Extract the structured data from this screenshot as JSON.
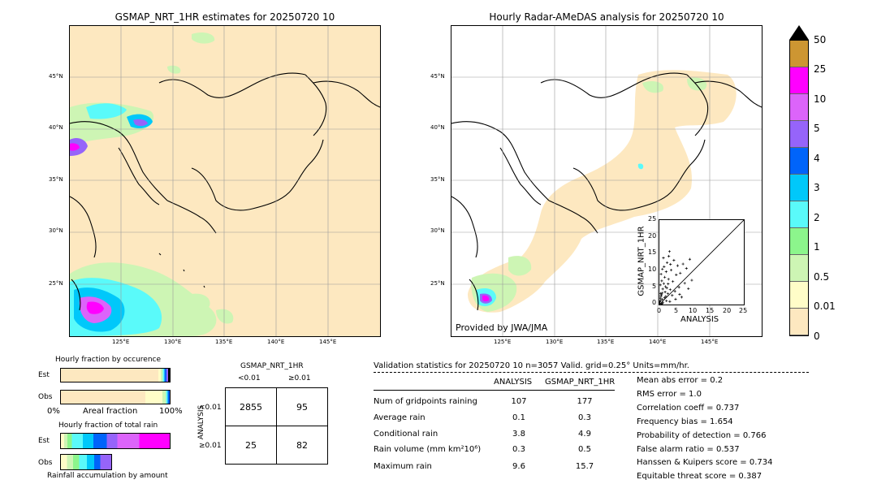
{
  "left_map": {
    "title": "GSMAP_NRT_1HR estimates for 20250720 10",
    "lat_labels": [
      "45°N",
      "40°N",
      "35°N",
      "30°N",
      "25°N"
    ],
    "lon_labels": [
      "125°E",
      "130°E",
      "135°E",
      "140°E",
      "145°E"
    ]
  },
  "right_map": {
    "title": "Hourly Radar-AMeDAS analysis for 20250720 10",
    "lat_labels": [
      "45°N",
      "40°N",
      "35°N",
      "30°N",
      "25°N"
    ],
    "lon_labels": [
      "125°E",
      "130°E",
      "135°E",
      "140°E",
      "145°E"
    ],
    "credit": "Provided by JWA/JMA"
  },
  "scatter": {
    "ylabel": "GSMAP_NRT_1HR",
    "xlabel": "ANALYSIS",
    "ticks": [
      "0",
      "5",
      "10",
      "15",
      "20",
      "25"
    ]
  },
  "colorbar": {
    "labels": [
      "0",
      "0.01",
      "0.5",
      "1",
      "2",
      "3",
      "4",
      "5",
      "10",
      "25",
      "50"
    ],
    "colors": [
      "#fde8c0",
      "#fffdc8",
      "#cdf5b4",
      "#8cf58c",
      "#5afafa",
      "#00c8fa",
      "#0064fa",
      "#9664fa",
      "#dc64fa",
      "#ff00ff",
      "#cd9632"
    ]
  },
  "occurrence": {
    "title": "Hourly fraction by occurence",
    "rows": [
      "Est",
      "Obs"
    ],
    "axis_left": "0%",
    "axis_mid": "Areal fraction",
    "axis_right": "100%"
  },
  "total_rain": {
    "title": "Hourly fraction of total rain",
    "rows": [
      "Est",
      "Obs"
    ],
    "caption": "Rainfall accumulation by amount"
  },
  "contingency": {
    "title": "GSMAP_NRT_1HR",
    "col_headers": [
      "<0.01",
      "≥0.01"
    ],
    "row_title": "ANALYSIS",
    "row_headers": [
      "<0.01",
      "≥0.01"
    ],
    "cells": [
      [
        "2855",
        "95"
      ],
      [
        "25",
        "82"
      ]
    ]
  },
  "validation": {
    "header": "Validation statistics for 20250720 10  n=3057 Valid. grid=0.25° Units=mm/hr.",
    "col_analysis": "ANALYSIS",
    "col_gsmap": "GSMAP_NRT_1HR",
    "rows": [
      {
        "label": "Num of gridpoints raining",
        "analysis": "107",
        "gsmap": "177"
      },
      {
        "label": "Average rain",
        "analysis": "0.1",
        "gsmap": "0.3"
      },
      {
        "label": "Conditional rain",
        "analysis": "3.8",
        "gsmap": "4.9"
      },
      {
        "label": "Rain volume (mm km²10⁶)",
        "analysis": "0.3",
        "gsmap": "0.5"
      },
      {
        "label": "Maximum rain",
        "analysis": "9.6",
        "gsmap": "15.7"
      }
    ],
    "scores": [
      "Mean abs error =    0.2",
      "RMS error =    1.0",
      "Correlation coeff =  0.737",
      "Frequency bias =  1.654",
      "Probability of detection =  0.766",
      "False alarm ratio =  0.537",
      "Hanssen & Kuipers score =  0.734",
      "Equitable threat score =  0.387"
    ]
  },
  "chart_data": {
    "type": "scatter",
    "xlabel": "ANALYSIS",
    "ylabel": "GSMAP_NRT_1HR",
    "xlim": [
      0,
      25
    ],
    "ylim": [
      0,
      25
    ],
    "points": [
      [
        0.2,
        0.3
      ],
      [
        0.4,
        1.2
      ],
      [
        0.5,
        2.5
      ],
      [
        0.6,
        0.1
      ],
      [
        0.8,
        3.4
      ],
      [
        1.0,
        4.6
      ],
      [
        1.1,
        0.5
      ],
      [
        1.3,
        6.2
      ],
      [
        1.5,
        2.0
      ],
      [
        1.6,
        8.1
      ],
      [
        1.8,
        5.3
      ],
      [
        2.0,
        9.7
      ],
      [
        2.1,
        1.1
      ],
      [
        2.3,
        12.4
      ],
      [
        2.5,
        3.2
      ],
      [
        2.7,
        7.5
      ],
      [
        3.0,
        15.7
      ],
      [
        3.2,
        4.4
      ],
      [
        3.5,
        10.2
      ],
      [
        3.8,
        2.7
      ],
      [
        4.0,
        6.8
      ],
      [
        4.3,
        13.1
      ],
      [
        4.6,
        3.9
      ],
      [
        5.0,
        8.8
      ],
      [
        5.4,
        11.5
      ],
      [
        5.8,
        5.1
      ],
      [
        6.2,
        9.3
      ],
      [
        6.6,
        2.2
      ],
      [
        7.0,
        12.0
      ],
      [
        7.5,
        6.3
      ],
      [
        8.0,
        10.7
      ],
      [
        8.6,
        4.7
      ],
      [
        9.0,
        13.4
      ],
      [
        9.6,
        7.2
      ],
      [
        0.3,
        5.8
      ],
      [
        0.7,
        7.0
      ],
      [
        0.9,
        10.5
      ],
      [
        1.2,
        13.8
      ],
      [
        0.5,
        9.0
      ],
      [
        1.4,
        11.2
      ],
      [
        2.8,
        14.3
      ],
      [
        3.3,
        11.9
      ],
      [
        0.1,
        0.8
      ],
      [
        0.3,
        1.9
      ],
      [
        0.6,
        2.9
      ],
      [
        0.9,
        1.5
      ],
      [
        1.7,
        3.7
      ],
      [
        2.2,
        4.9
      ],
      [
        2.6,
        6.1
      ],
      [
        3.1,
        0.9
      ],
      [
        0.4,
        3.3
      ],
      [
        1.9,
        2.4
      ],
      [
        4.8,
        1.6
      ],
      [
        6.0,
        3.0
      ],
      [
        0.8,
        0.4
      ]
    ],
    "diagonal": true
  }
}
